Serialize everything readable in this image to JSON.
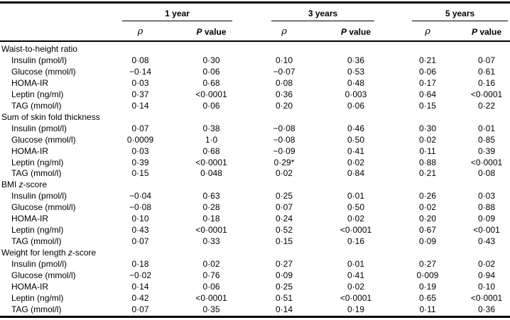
{
  "table": {
    "col_groups": [
      {
        "label": "1 year"
      },
      {
        "label": "3 years"
      },
      {
        "label": "5 years"
      }
    ],
    "subheaders": {
      "rho": [
        {
          "t": "ρ",
          "i": true
        }
      ],
      "p": [
        {
          "t": "P",
          "i": true
        },
        {
          "t": " value"
        }
      ]
    },
    "groups": [
      {
        "label_parts": [
          {
            "t": "Waist-to-height ratio"
          }
        ],
        "rows": [
          {
            "label": "Insulin (pmol/l)",
            "values": [
              "0·08",
              "0·30",
              "0·10",
              "0·36",
              "0·21",
              "0·07"
            ]
          },
          {
            "label": "Glucose (mmol/l)",
            "values": [
              "−0·14",
              "0·06",
              "−0·07",
              "0·53",
              "0·06",
              "0·61"
            ]
          },
          {
            "label": "HOMA-IR",
            "values": [
              "0·03",
              "0·68",
              "0·08",
              "0·48",
              "0·17",
              "0·16"
            ]
          },
          {
            "label": "Leptin (ng/ml)",
            "values": [
              "0·37",
              "<0·0001",
              "0·36",
              "0·003",
              "0·64",
              "<0·0001"
            ]
          },
          {
            "label": "TAG (mmol/l)",
            "values": [
              "0·14",
              "0·06",
              "0·20",
              "0·06",
              "0·15",
              "0·22"
            ]
          }
        ]
      },
      {
        "label_parts": [
          {
            "t": "Sum of skin fold thickness"
          }
        ],
        "rows": [
          {
            "label": "Insulin (pmol/l)",
            "values": [
              "0·07",
              "0·38",
              "−0·08",
              "0·46",
              "0·30",
              "0·01"
            ]
          },
          {
            "label": "Glucose (mmol/l)",
            "values": [
              "0·0009",
              "1·0",
              "−0·08",
              "0·50",
              "0·02",
              "0·85"
            ]
          },
          {
            "label": "HOMA-IR",
            "values": [
              "0·03",
              "0·68",
              "−0·09",
              "0·41",
              "0·11",
              "0·39"
            ]
          },
          {
            "label": "Leptin (ng/ml)",
            "values": [
              "0·39",
              "<0·0001",
              "0·29*",
              "0·02",
              "0·88",
              "<0·0001"
            ]
          },
          {
            "label": "TAG (mmol/l)",
            "values": [
              "0·15",
              "0·048",
              "0·02",
              "0·84",
              "0·21",
              "0·08"
            ]
          }
        ]
      },
      {
        "label_parts": [
          {
            "t": "BMI "
          },
          {
            "t": "z",
            "i": true
          },
          {
            "t": "-score"
          }
        ],
        "rows": [
          {
            "label": "Insulin (pmol/l)",
            "values": [
              "−0·04",
              "0·63",
              "0·25",
              "0·01",
              "0·26",
              "0·03"
            ]
          },
          {
            "label": "Glucose (mmol/l)",
            "values": [
              "−0·08",
              "0·28",
              "0·07",
              "0·50",
              "0·02",
              "0·88"
            ]
          },
          {
            "label": "HOMA-IR",
            "values": [
              "0·10",
              "0·18",
              "0·24",
              "0·02",
              "0·20",
              "0·09"
            ]
          },
          {
            "label": "Leptin (ng/ml)",
            "values": [
              "0·43",
              "<0·0001",
              "0·52",
              "<0·0001",
              "0·67",
              "<0·001"
            ]
          },
          {
            "label": "TAG (mmol/l)",
            "values": [
              "0·07",
              "0·33",
              "0·15",
              "0·16",
              "0·09",
              "0·43"
            ]
          }
        ]
      },
      {
        "label_parts": [
          {
            "t": "Weight for length "
          },
          {
            "t": "z",
            "i": true
          },
          {
            "t": "-score"
          }
        ],
        "rows": [
          {
            "label": "Insulin (pmol/l)",
            "values": [
              "0·18",
              "0·02",
              "0·27",
              "0·01",
              "0·27",
              "0·02"
            ]
          },
          {
            "label": "Glucose (mmol/l)",
            "values": [
              "−0·02",
              "0·76",
              "0·09",
              "0·41",
              "0·009",
              "0·94"
            ]
          },
          {
            "label": "HOMA-IR",
            "values": [
              "0·14",
              "0·06",
              "0·25",
              "0·02",
              "0·19",
              "0·10"
            ]
          },
          {
            "label": "Leptin (ng/ml)",
            "values": [
              "0·42",
              "<0·0001",
              "0·51",
              "<0·0001",
              "0·65",
              "<0·0001"
            ]
          },
          {
            "label": "TAG (mmol/l)",
            "values": [
              "0·07",
              "0·35",
              "0·14",
              "0·19",
              "0·11",
              "0·36"
            ]
          }
        ]
      }
    ]
  }
}
